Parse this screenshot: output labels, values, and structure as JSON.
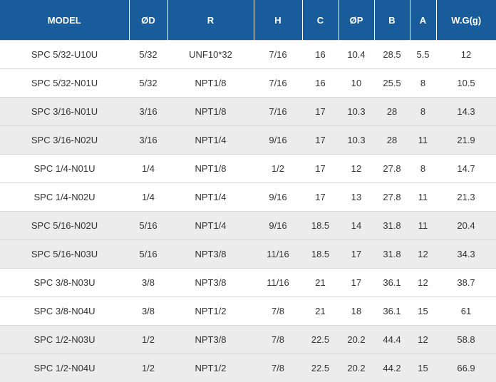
{
  "columns": [
    "MODEL",
    "ØD",
    "R",
    "H",
    "C",
    "ØP",
    "B",
    "A",
    "W.G(g)"
  ],
  "rows": [
    [
      "SPC 5/32-U10U",
      "5/32",
      "UNF10*32",
      "7/16",
      "16",
      "10.4",
      "28.5",
      "5.5",
      "12"
    ],
    [
      "SPC 5/32-N01U",
      "5/32",
      "NPT1/8",
      "7/16",
      "16",
      "10",
      "25.5",
      "8",
      "10.5"
    ],
    [
      "SPC 3/16-N01U",
      "3/16",
      "NPT1/8",
      "7/16",
      "17",
      "10.3",
      "28",
      "8",
      "14.3"
    ],
    [
      "SPC 3/16-N02U",
      "3/16",
      "NPT1/4",
      "9/16",
      "17",
      "10.3",
      "28",
      "11",
      "21.9"
    ],
    [
      "SPC 1/4-N01U",
      "1/4",
      "NPT1/8",
      "1/2",
      "17",
      "12",
      "27.8",
      "8",
      "14.7"
    ],
    [
      "SPC 1/4-N02U",
      "1/4",
      "NPT1/4",
      "9/16",
      "17",
      "13",
      "27.8",
      "11",
      "21.3"
    ],
    [
      "SPC 5/16-N02U",
      "5/16",
      "NPT1/4",
      "9/16",
      "18.5",
      "14",
      "31.8",
      "11",
      "20.4"
    ],
    [
      "SPC 5/16-N03U",
      "5/16",
      "NPT3/8",
      "11/16",
      "18.5",
      "17",
      "31.8",
      "12",
      "34.3"
    ],
    [
      "SPC 3/8-N03U",
      "3/8",
      "NPT3/8",
      "11/16",
      "21",
      "17",
      "36.1",
      "12",
      "38.7"
    ],
    [
      "SPC 3/8-N04U",
      "3/8",
      "NPT1/2",
      "7/8",
      "21",
      "18",
      "36.1",
      "15",
      "61"
    ],
    [
      "SPC 1/2-N03U",
      "1/2",
      "NPT3/8",
      "7/8",
      "22.5",
      "20.2",
      "44.4",
      "12",
      "58.8"
    ],
    [
      "SPC 1/2-N04U",
      "1/2",
      "NPT1/2",
      "7/8",
      "22.5",
      "20.2",
      "44.2",
      "15",
      "66.9"
    ]
  ],
  "shaded_rows": [
    2,
    3,
    6,
    7,
    10,
    11
  ],
  "colors": {
    "header_bg": "#195c9b",
    "header_text": "#ffffff",
    "alt_row_bg": "#ececec",
    "cell_text": "#333333"
  }
}
